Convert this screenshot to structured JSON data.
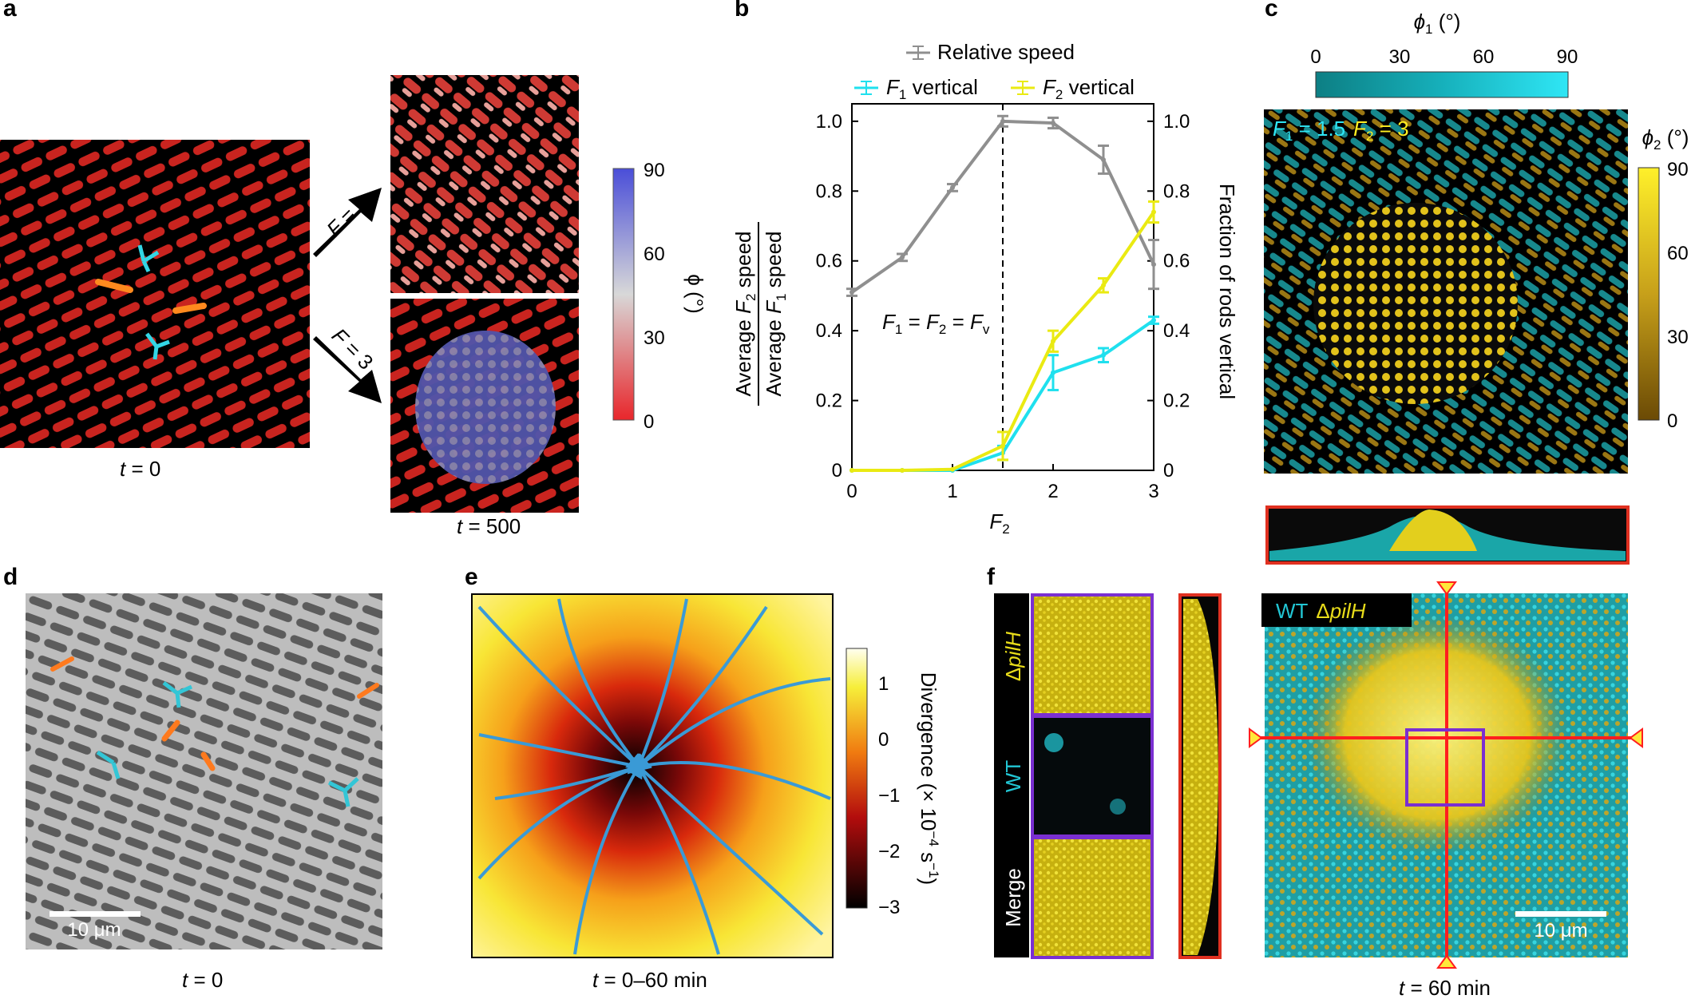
{
  "panels": {
    "a": {
      "label": "a",
      "caption_left_var": "t",
      "caption_left_val": " = 0",
      "caption_right_var": "t",
      "caption_right_val": " = 500",
      "arrow_top_var": "F",
      "arrow_top_val": " = 1",
      "arrow_bottom_var": "F",
      "arrow_bottom_val": " = 3",
      "colorbar_ticks": [
        "90",
        "60",
        "30",
        "0"
      ],
      "colorbar_label": "ϕ (°)",
      "colors": {
        "low": "#e8262b",
        "mid": "#d8d8d8",
        "high": "#4a4ed8",
        "rod": "#cf2a26"
      }
    },
    "b": {
      "label": "b"
    },
    "c": {
      "label": "c",
      "phi1_sym": "ϕ",
      "phi1_sub": "1",
      "phi1_unit": " (°)",
      "phi1_ticks": [
        "0",
        "30",
        "60",
        "90"
      ],
      "phi2_sym": "ϕ",
      "phi2_sub": "2",
      "phi2_unit": " (°)",
      "phi2_ticks": [
        "90",
        "60",
        "30",
        "0"
      ],
      "inset_F1": "F",
      "inset_F1_sub": "1",
      "inset_F1_val": " = 1.5",
      "inset_F2": "F",
      "inset_F2_sub": "2",
      "inset_F2_val": " = 3",
      "colors": {
        "cyan": "#1aa6a8",
        "gold": "#c8a31a"
      }
    },
    "d": {
      "label": "d",
      "scalebar": "10 μm",
      "caption_var": "t",
      "caption_val": " = 0"
    },
    "e": {
      "label": "e",
      "colorbar_ticks": [
        "1",
        "0",
        "−1",
        "−2",
        "−3"
      ],
      "colorbar_label": "Divergence (× 10",
      "colorbar_label_exp": "−4",
      "colorbar_label_unit": " s",
      "colorbar_label_unit_exp": "−1",
      "colorbar_label_close": ")",
      "caption_var": "t",
      "caption_val": " = 0–60 min",
      "colors": {
        "stream": "#3a9ad6"
      }
    },
    "f": {
      "label": "f",
      "row_labels": [
        "Δ",
        "pilH",
        "WT",
        "Merge"
      ],
      "legend_wt": "WT",
      "legend_delta": "Δ",
      "legend_pilh": "pilH",
      "scalebar": "10 μm",
      "caption_var": "t",
      "caption_val": " = 60 min",
      "colors": {
        "frame_purple": "#7a2fd1",
        "frame_red": "#e03020",
        "cross": "#ff1e1e",
        "yellow": "#e8dc1a",
        "cyan": "#22c6d4"
      }
    }
  },
  "chart_data": {
    "type": "line",
    "x": [
      0,
      0.5,
      1,
      1.5,
      2,
      2.5,
      3
    ],
    "xlabel_var": "F",
    "xlabel_sub": "2",
    "xlim": [
      0,
      3
    ],
    "xticks": [
      "0",
      "1",
      "2",
      "3"
    ],
    "ylabel_left_num_a": "Average ",
    "ylabel_left_num_var": "F",
    "ylabel_left_num_sub": "2",
    "ylabel_left_num_b": " speed",
    "ylabel_left_den_a": "Average ",
    "ylabel_left_den_var": "F",
    "ylabel_left_den_sub": "1",
    "ylabel_left_den_b": " speed",
    "ylabel_right": "Fraction of rods vertical",
    "ylim_left": [
      0,
      1.05
    ],
    "ylim_right": [
      0,
      1.05
    ],
    "yticks": [
      "0",
      "0.2",
      "0.4",
      "0.6",
      "0.8",
      "1.0"
    ],
    "annotation_F1": "F",
    "annotation_F1_sub": "1",
    "annotation_eq1": " = ",
    "annotation_F2": "F",
    "annotation_F2_sub": "2",
    "annotation_eq2": " = ",
    "annotation_Fv": "F",
    "annotation_Fv_sub": "v",
    "vline_x": 1.5,
    "legend_position": "top",
    "series": [
      {
        "name": "Relative speed",
        "axis": "left",
        "color": "#8f8f8f",
        "x": [
          0,
          0.5,
          1,
          1.5,
          2,
          2.5,
          3
        ],
        "values": [
          0.51,
          0.61,
          0.81,
          1.0,
          0.995,
          0.89,
          0.59
        ],
        "err": [
          0.01,
          0.01,
          0.01,
          0.015,
          0.015,
          0.04,
          0.07
        ]
      },
      {
        "name": "F1 vertical",
        "name_var": "F",
        "name_sub": "1",
        "name_rest": " vertical",
        "axis": "right",
        "color": "#1fe0ee",
        "x": [
          0,
          0.5,
          1,
          1.5,
          2,
          2.5,
          3
        ],
        "values": [
          0,
          0,
          0,
          0.05,
          0.28,
          0.33,
          0.43
        ],
        "err": [
          0,
          0,
          0,
          0.02,
          0.05,
          0.02,
          0.01
        ]
      },
      {
        "name": "F2 vertical",
        "name_var": "F",
        "name_sub": "2",
        "name_rest": " vertical",
        "axis": "right",
        "color": "#eaea12",
        "x": [
          0,
          0.5,
          1,
          1.5,
          2,
          2.5,
          3
        ],
        "values": [
          0,
          0,
          0.003,
          0.07,
          0.37,
          0.53,
          0.74
        ],
        "err": [
          0,
          0,
          0,
          0.04,
          0.03,
          0.02,
          0.03
        ]
      }
    ]
  }
}
